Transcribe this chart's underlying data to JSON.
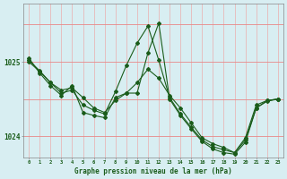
{
  "title": "Graphe pression niveau de la mer (hPa)",
  "bg_color": "#d8eef2",
  "line_color": "#1a5c1a",
  "marker_color": "#1a5c1a",
  "vgrid_color": "#e8b8b8",
  "hgrid_color": "#e88888",
  "xlim": [
    -0.5,
    23.5
  ],
  "ylim": [
    1023.72,
    1025.78
  ],
  "yticks": [
    1024,
    1025
  ],
  "xticks": [
    0,
    1,
    2,
    3,
    4,
    5,
    6,
    7,
    8,
    9,
    10,
    11,
    12,
    13,
    14,
    15,
    16,
    17,
    18,
    19,
    20,
    21,
    22,
    23
  ],
  "series1_x": [
    0,
    1,
    2,
    3,
    4,
    5,
    6,
    7,
    8,
    9,
    10,
    11,
    12,
    13,
    14,
    15,
    16,
    17,
    18,
    19,
    20,
    21,
    22,
    23
  ],
  "series1_y": [
    1025.0,
    1024.87,
    1024.72,
    1024.62,
    1024.65,
    1024.52,
    1024.38,
    1024.32,
    1024.48,
    1024.58,
    1024.72,
    1024.9,
    1024.78,
    1024.55,
    1024.38,
    1024.18,
    1023.98,
    1023.9,
    1023.85,
    1023.78,
    1023.98,
    1024.42,
    1024.48,
    1024.5
  ],
  "series2_x": [
    0,
    1,
    2,
    3,
    4,
    5,
    6,
    7,
    8,
    9,
    10,
    11,
    12,
    13,
    14,
    15,
    16,
    17,
    18,
    19,
    20,
    21,
    22,
    23
  ],
  "series2_y": [
    1025.02,
    1024.88,
    1024.72,
    1024.58,
    1024.62,
    1024.42,
    1024.35,
    1024.3,
    1024.6,
    1024.95,
    1025.25,
    1025.48,
    1025.02,
    1024.52,
    1024.3,
    1024.12,
    1023.95,
    1023.86,
    1023.82,
    1023.78,
    1023.95,
    1024.38,
    1024.48,
    1024.5
  ],
  "series3_x": [
    0,
    1,
    2,
    3,
    4,
    5,
    6,
    7,
    8,
    9,
    10,
    11,
    12,
    13,
    14,
    15,
    16,
    17,
    18,
    19,
    20,
    21,
    22,
    23
  ],
  "series3_y": [
    1025.05,
    1024.85,
    1024.68,
    1024.55,
    1024.68,
    1024.32,
    1024.28,
    1024.25,
    1024.52,
    1024.58,
    1024.58,
    1025.12,
    1025.52,
    1024.5,
    1024.28,
    1024.1,
    1023.93,
    1023.83,
    1023.78,
    1023.76,
    1023.92,
    1024.38,
    1024.47,
    1024.5
  ]
}
